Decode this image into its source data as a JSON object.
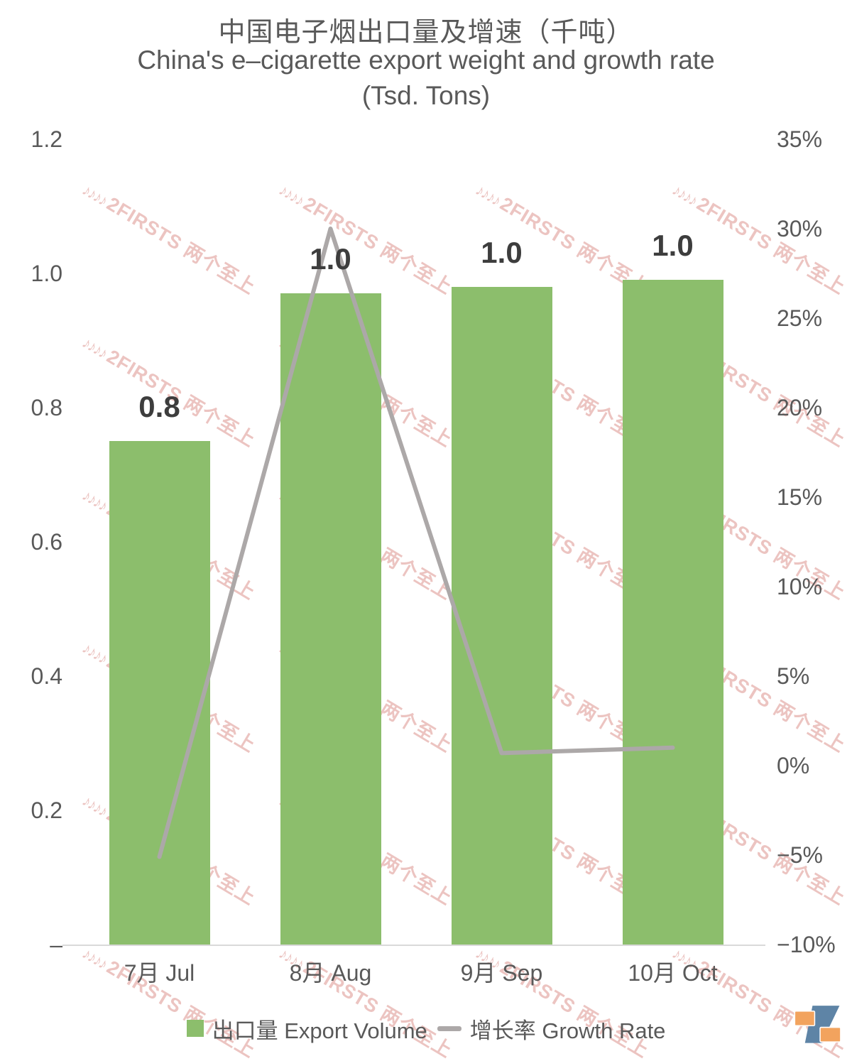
{
  "title": {
    "line_zh": "中国电子烟出口量及增速（千吨）",
    "line_en": "China's e–cigarette export weight and growth rate (Tsd. Tons)"
  },
  "watermark": {
    "icon": "music-notes-icon",
    "text": "2FIRSTS 两个至上",
    "color": "#D98983"
  },
  "legend": {
    "items": [
      {
        "label": "出口量 Export Volume",
        "type": "bar",
        "color": "#8CBE6C"
      },
      {
        "label": "增长率 Growth Rate",
        "type": "line",
        "color": "#ACA8A8"
      }
    ]
  },
  "brand": {
    "name": "2firsts-logo",
    "orange": "#F2A35E",
    "blue": "#5E84A6"
  },
  "chart_data": {
    "type": "bar",
    "subtype": "combo-bar-line-dual-axis",
    "title": "中国电子烟出口量及增速（千吨） China's e–cigarette export weight and growth rate (Tsd. Tons)",
    "categories": [
      "7月 Jul",
      "8月 Aug",
      "9月 Sep",
      "10月 Oct"
    ],
    "series": [
      {
        "name": "出口量 Export Volume",
        "type": "bar",
        "axis": "left",
        "values": [
          0.75,
          0.97,
          0.98,
          0.99
        ],
        "data_labels": [
          "0.8",
          "1.0",
          "1.0",
          "1.0"
        ],
        "color": "#8CBE6C"
      },
      {
        "name": "增长率 Growth Rate",
        "type": "line",
        "axis": "right",
        "values_pct": [
          -5.1,
          30,
          0.7,
          1.0
        ],
        "color": "#ACA8A8"
      }
    ],
    "left_axis": {
      "min": 0,
      "max": 1.2,
      "tick_labels": [
        "1.2",
        "1.0",
        "0.8",
        "0.6",
        "0.4",
        "0.2",
        "–"
      ]
    },
    "right_axis": {
      "min_pct": -10,
      "max_pct": 35,
      "tick_labels": [
        "35%",
        "30%",
        "25%",
        "20%",
        "15%",
        "10%",
        "5%",
        "0%",
        "−5%",
        "−10%"
      ]
    },
    "grid": false,
    "legend_position": "bottom",
    "xlabel": "",
    "ylabel": ""
  }
}
